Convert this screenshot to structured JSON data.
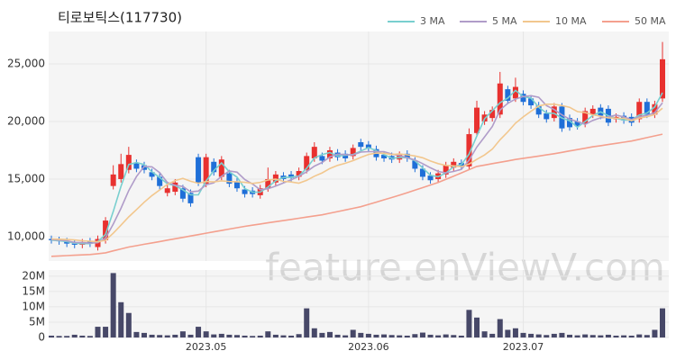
{
  "chart_data": [
    {
      "type": "candlestick",
      "title": "티로보틱스(117730)",
      "watermark": "feature.enViewV.com",
      "up_color": "#e8312f",
      "down_color": "#1f6fd8",
      "grid": true,
      "categories": [
        null,
        null,
        null,
        null,
        null,
        null,
        null,
        null,
        null,
        null,
        null,
        null,
        null,
        null,
        null,
        null,
        null,
        null,
        null,
        null,
        "2023.05",
        null,
        null,
        null,
        null,
        null,
        null,
        null,
        null,
        null,
        null,
        null,
        null,
        null,
        null,
        null,
        null,
        null,
        null,
        null,
        null,
        "2023.06",
        null,
        null,
        null,
        null,
        null,
        null,
        null,
        null,
        null,
        null,
        null,
        null,
        null,
        null,
        null,
        null,
        null,
        null,
        null,
        "2023.07",
        null,
        null,
        null,
        null,
        null,
        null,
        null,
        null,
        null,
        null,
        null,
        null,
        null,
        null,
        null,
        null,
        null,
        null
      ],
      "open": [
        9800,
        9700,
        9600,
        9400,
        9300,
        9600,
        9100,
        9700,
        14400,
        15000,
        15800,
        16400,
        16200,
        15600,
        15200,
        13800,
        13900,
        14200,
        13800,
        16900,
        14600,
        16500,
        15200,
        15500,
        14800,
        14100,
        14000,
        13600,
        14200,
        14700,
        15300,
        15400,
        15200,
        15800,
        16800,
        17000,
        16800,
        17300,
        17200,
        17000,
        18200,
        18000,
        17600,
        17100,
        17000,
        16700,
        17200,
        16600,
        15900,
        15300,
        15000,
        15400,
        16000,
        16400,
        16100,
        19000,
        20000,
        20300,
        20600,
        22800,
        22000,
        22400,
        22000,
        21400,
        20700,
        20300,
        21300,
        20300,
        20000,
        19800,
        20600,
        21200,
        21100,
        20200,
        20500,
        20400,
        20200,
        21700,
        20600,
        22000
      ],
      "high": [
        10100,
        10000,
        9900,
        9700,
        9800,
        9900,
        10100,
        11700,
        16200,
        17200,
        17800,
        16700,
        16500,
        15900,
        15500,
        14500,
        15000,
        14500,
        14100,
        17200,
        17200,
        16800,
        17000,
        15800,
        15100,
        14400,
        14300,
        14500,
        16000,
        15700,
        15600,
        15700,
        16000,
        17300,
        18200,
        17300,
        17800,
        17600,
        17500,
        18000,
        18500,
        18300,
        17900,
        17400,
        17300,
        17400,
        17500,
        16900,
        16200,
        15600,
        15800,
        16500,
        16800,
        16700,
        19400,
        21800,
        20900,
        21300,
        24300,
        23100,
        23800,
        22700,
        22300,
        21700,
        21000,
        21600,
        21600,
        20600,
        20300,
        21200,
        21400,
        21500,
        21400,
        20700,
        20800,
        20700,
        22000,
        22000,
        21800,
        26900
      ],
      "low": [
        9400,
        9300,
        9100,
        9000,
        9000,
        9100,
        8800,
        9400,
        14100,
        14700,
        15500,
        15600,
        15500,
        14900,
        14100,
        13500,
        13600,
        13000,
        12600,
        14400,
        14300,
        15300,
        14900,
        14300,
        13900,
        13400,
        13400,
        13300,
        13900,
        14400,
        14700,
        14800,
        14900,
        15500,
        16500,
        16300,
        16500,
        16600,
        16500,
        16700,
        17500,
        17400,
        16600,
        16500,
        16400,
        16400,
        16500,
        15600,
        14900,
        14600,
        14700,
        15100,
        15700,
        15800,
        15800,
        18700,
        19700,
        20000,
        20300,
        21500,
        21700,
        21400,
        21100,
        20300,
        19900,
        20000,
        19100,
        19200,
        19300,
        19500,
        20300,
        20200,
        19600,
        19900,
        19800,
        19600,
        19900,
        20300,
        20300,
        21700
      ],
      "close": [
        9700,
        9600,
        9400,
        9300,
        9500,
        9400,
        9800,
        11400,
        15400,
        16300,
        17100,
        15900,
        15800,
        15200,
        14400,
        14200,
        14700,
        13300,
        12900,
        14700,
        16900,
        15600,
        16700,
        14600,
        14200,
        13700,
        13700,
        14200,
        15000,
        15400,
        15000,
        15100,
        15700,
        17000,
        17800,
        16600,
        17500,
        16900,
        16800,
        17700,
        17800,
        17700,
        16900,
        16800,
        16700,
        17100,
        16800,
        15900,
        15200,
        14900,
        15500,
        16200,
        16500,
        16100,
        18900,
        21200,
        20600,
        21000,
        23300,
        21800,
        23000,
        21700,
        21400,
        20600,
        20200,
        21300,
        19400,
        19500,
        19600,
        20900,
        21100,
        20500,
        19900,
        20400,
        20100,
        19900,
        21700,
        20600,
        21500,
        25400
      ],
      "series": [
        {
          "name": "3 MA",
          "color": "#79cfcf",
          "values": [
            9700,
            9650,
            9567,
            9433,
            9400,
            9400,
            9567,
            10200,
            12200,
            14367,
            16267,
            16433,
            16267,
            15633,
            15133,
            14600,
            14433,
            14067,
            13633,
            13633,
            14833,
            15733,
            16400,
            15633,
            15167,
            14167,
            13867,
            13867,
            14300,
            14867,
            15133,
            15167,
            15267,
            15933,
            16833,
            17133,
            17300,
            17000,
            17067,
            17133,
            17433,
            17733,
            17467,
            17133,
            16800,
            16867,
            16867,
            16600,
            15967,
            15333,
            15200,
            15533,
            16067,
            16267,
            17167,
            18733,
            20233,
            20933,
            21633,
            22033,
            22700,
            22167,
            22033,
            21233,
            20733,
            20700,
            20300,
            20067,
            19500,
            20000,
            20533,
            20833,
            20500,
            20267,
            20133,
            20133,
            20567,
            20733,
            21267,
            22500
          ]
        },
        {
          "name": "5 MA",
          "color": "#b09cc9",
          "values": [
            9750,
            9700,
            9650,
            9500,
            9500,
            9440,
            9480,
            9880,
            11100,
            12460,
            14000,
            15220,
            16100,
            16060,
            15560,
            14700,
            14460,
            14360,
            13900,
            13960,
            14500,
            14680,
            15240,
            15700,
            15600,
            14960,
            14580,
            14080,
            14160,
            14400,
            14660,
            14940,
            15240,
            15640,
            16120,
            16440,
            16920,
            17160,
            17120,
            17100,
            17340,
            17380,
            17380,
            17380,
            17180,
            17040,
            16860,
            16660,
            16340,
            15980,
            15660,
            15540,
            15660,
            15840,
            16640,
            17780,
            18660,
            19560,
            21000,
            21580,
            21940,
            22160,
            22240,
            22100,
            21380,
            21040,
            20580,
            20200,
            20000,
            19740,
            20100,
            20320,
            20400,
            20560,
            20400,
            20160,
            20420,
            20540,
            20760,
            21620
          ]
        },
        {
          "name": "10 MA",
          "color": "#f2c78e",
          "values": [
            9800,
            9780,
            9760,
            9720,
            9650,
            9600,
            9560,
            9690,
            10300,
            11000,
            11720,
            12350,
            12990,
            13570,
            14060,
            14540,
            14870,
            15060,
            14810,
            14640,
            14790,
            14760,
            14850,
            14790,
            14770,
            14720,
            14620,
            14710,
            14920,
            14990,
            14800,
            14750,
            14650,
            14890,
            15250,
            15540,
            15920,
            16190,
            16370,
            16600,
            16880,
            17140,
            17260,
            17240,
            17130,
            17180,
            17110,
            17010,
            16850,
            16570,
            16340,
            16190,
            16150,
            16080,
            16300,
            16710,
            17090,
            17600,
            18410,
            19100,
            19850,
            20400,
            20890,
            21340,
            21500,
            21500,
            21380,
            21230,
            20860,
            20770,
            20580,
            20460,
            20310,
            20290,
            20280,
            20070,
            20300,
            20410,
            20600,
            21150
          ]
        },
        {
          "name": "50 MA",
          "color": "#f4a08e",
          "values": [
            8300,
            8330,
            8360,
            8390,
            8420,
            8450,
            8520,
            8600,
            8770,
            8940,
            9100,
            9220,
            9340,
            9460,
            9580,
            9700,
            9820,
            9940,
            10060,
            10180,
            10300,
            10420,
            10540,
            10660,
            10780,
            10900,
            11000,
            11100,
            11200,
            11300,
            11400,
            11500,
            11600,
            11700,
            11800,
            11900,
            12040,
            12180,
            12320,
            12460,
            12600,
            12800,
            13000,
            13200,
            13400,
            13600,
            13820,
            14040,
            14260,
            14480,
            14700,
            14980,
            15260,
            15540,
            15820,
            16100,
            16220,
            16340,
            16460,
            16580,
            16700,
            16800,
            16900,
            17000,
            17100,
            17200,
            17320,
            17440,
            17560,
            17680,
            17800,
            17900,
            18000,
            18100,
            18200,
            18300,
            18450,
            18600,
            18750,
            18900
          ]
        }
      ],
      "ylim": [
        7890,
        27810
      ],
      "yticks": [
        {
          "value": 10000,
          "label": "10,000"
        },
        {
          "value": 15000,
          "label": "15,000"
        },
        {
          "value": 20000,
          "label": "20,000"
        },
        {
          "value": 25000,
          "label": "25,000"
        }
      ]
    },
    {
      "type": "bar",
      "color": "#474868",
      "values": [
        600000,
        500000,
        500000,
        900000,
        600000,
        500000,
        3500000,
        3500000,
        21000000,
        11500000,
        8000000,
        1800000,
        1500000,
        900000,
        800000,
        700000,
        900000,
        2000000,
        900000,
        3500000,
        2000000,
        1000000,
        1200000,
        900000,
        800000,
        600000,
        500000,
        600000,
        2000000,
        900000,
        700000,
        600000,
        1100000,
        9500000,
        3000000,
        1500000,
        1800000,
        900000,
        700000,
        2500000,
        1500000,
        1200000,
        900000,
        1000000,
        800000,
        700000,
        600000,
        1100000,
        1600000,
        900000,
        700000,
        1000000,
        800000,
        600000,
        9000000,
        6500000,
        2000000,
        1200000,
        6000000,
        2500000,
        3000000,
        1500000,
        1200000,
        1000000,
        800000,
        1200000,
        1500000,
        900000,
        700000,
        1000000,
        800000,
        700000,
        900000,
        600000,
        700000,
        600000,
        1000000,
        800000,
        2500000,
        9500000
      ],
      "ylim": [
        0,
        22000000
      ],
      "yticks": [
        0,
        {
          "value": 5000000,
          "label": "5M"
        },
        {
          "value": 10000000,
          "label": "10M"
        },
        {
          "value": 15000000,
          "label": "15M"
        },
        {
          "value": 20000000,
          "label": "20M"
        }
      ]
    }
  ]
}
